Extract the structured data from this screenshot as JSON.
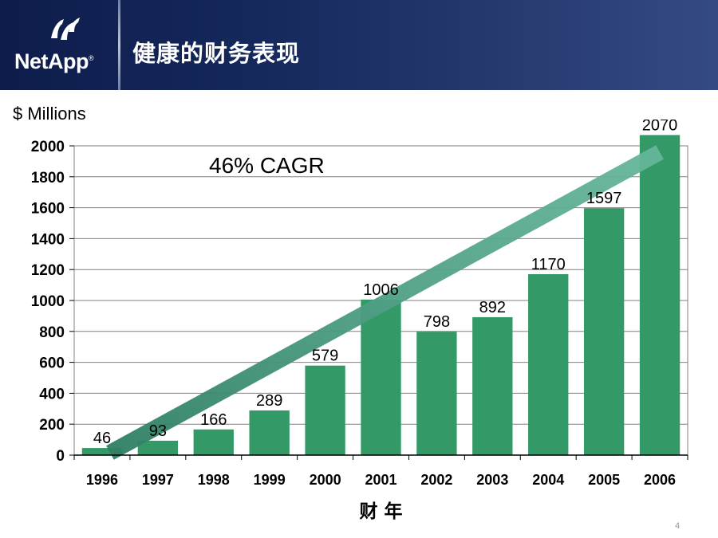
{
  "header": {
    "logo_text": "NetApp",
    "logo_registered": "®",
    "title": "健康的财务表现"
  },
  "page_number": "4",
  "colors": {
    "header_dark": "#0d1c4a",
    "bar": "#339966",
    "trend_arrow": "#5aae91"
  },
  "chart_data": {
    "type": "bar",
    "title": "",
    "units_label": "$ Millions",
    "xlabel": "财 年",
    "ylabel": "",
    "annotation": "46% CAGR",
    "categories": [
      "1996",
      "1997",
      "1998",
      "1999",
      "2000",
      "2001",
      "2002",
      "2003",
      "2004",
      "2005",
      "2006"
    ],
    "values": [
      46,
      93,
      166,
      289,
      579,
      1006,
      798,
      892,
      1170,
      1597,
      2070
    ],
    "data_labels": [
      "46",
      "93",
      "166",
      "289",
      "579",
      "1006",
      "798",
      "892",
      "1170",
      "1597",
      "2070"
    ],
    "yticks": [
      "0",
      "200",
      "400",
      "600",
      "800",
      "1000",
      "1200",
      "1400",
      "1600",
      "1800",
      "2000"
    ],
    "ylim": [
      0,
      2000
    ],
    "grid": true,
    "trend_arrow": true
  }
}
